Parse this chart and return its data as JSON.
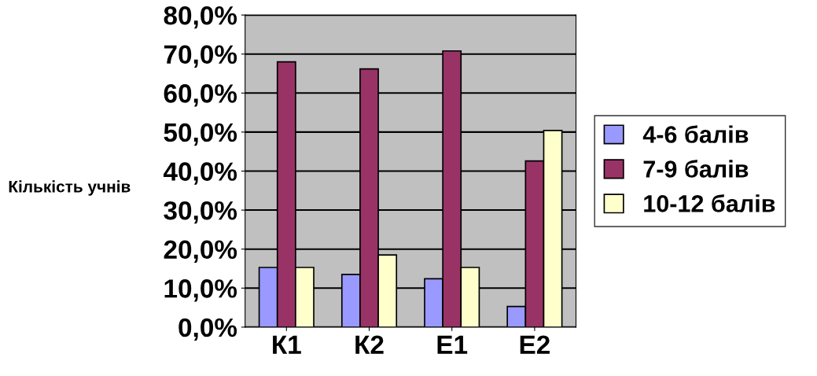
{
  "chart_data": {
    "type": "bar",
    "ylabel": "Кількість учнів",
    "categories": [
      "К1",
      "К2",
      "Е1",
      "Е2"
    ],
    "series": [
      {
        "name": "4-6 балів",
        "color": "#9999ff",
        "values": [
          15.3,
          13.5,
          12.4,
          5.3
        ]
      },
      {
        "name": "7-9 балів",
        "color": "#993366",
        "values": [
          68,
          66.2,
          70.8,
          42.6
        ]
      },
      {
        "name": "10-12 балів",
        "color": "#ffffcc",
        "values": [
          15.3,
          18.5,
          15.3,
          50.4
        ]
      }
    ],
    "ylim": [
      0,
      80
    ],
    "yticks": [
      {
        "value": 0,
        "label": "0,0%"
      },
      {
        "value": 10,
        "label": "10,0%"
      },
      {
        "value": 20,
        "label": "20,0%"
      },
      {
        "value": 30,
        "label": "30,0%"
      },
      {
        "value": 40,
        "label": "40,0%"
      },
      {
        "value": 50,
        "label": "50,0%"
      },
      {
        "value": 60,
        "label": "60,0%"
      },
      {
        "value": 70,
        "label": "70,0%"
      },
      {
        "value": 80,
        "label": "80,0%"
      }
    ],
    "grid": "y",
    "legend": "right"
  }
}
